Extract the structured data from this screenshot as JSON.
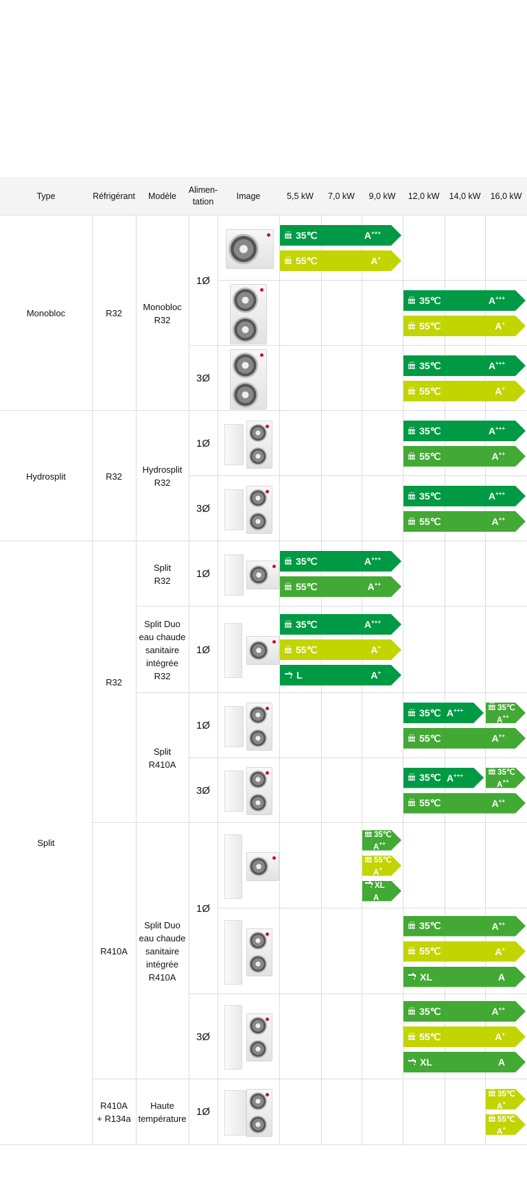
{
  "header": {
    "columns": [
      "Type",
      "Réfrigérant",
      "Modèle",
      "Alimen-\ntation",
      "Image",
      "5,5 kW",
      "7,0 kW",
      "9,0 kW",
      "12,0 kW",
      "14,0 kW",
      "16,0 kW"
    ]
  },
  "colors": {
    "dark_green": "#009a44",
    "mid_green": "#43a935",
    "yellow_green": "#c3d500",
    "header_bg": "#f4f4f4",
    "grid": "#dcdcdc"
  },
  "type_cells": [
    {
      "label": "Monobloc",
      "span": 3
    },
    {
      "label": "Hydrosplit",
      "span": 2
    },
    {
      "label": "Split",
      "span": 8
    }
  ],
  "refrigerant_cells": [
    {
      "label": "R32",
      "span": 3
    },
    {
      "label": "R32",
      "span": 2
    },
    {
      "label": "R32",
      "span": 4
    },
    {
      "label": "R410A",
      "span": 3
    },
    {
      "label": "R410A\n+ R134a",
      "span": 1
    }
  ],
  "model_cells": [
    {
      "label": "Monobloc\nR32",
      "span": 3
    },
    {
      "label": "Hydrosplit\nR32",
      "span": 2
    },
    {
      "label": "Split\nR32",
      "span": 1
    },
    {
      "label": "Split Duo\neau chaude\nsanitaire\nintégrée\nR32",
      "span": 1
    },
    {
      "label": "Split\nR410A",
      "span": 2
    },
    {
      "label": "Split Duo\neau chaude\nsanitaire\nintégrée\nR410A",
      "span": 3
    },
    {
      "label": "Haute\ntempérature",
      "span": 1
    }
  ],
  "power_cells": [
    {
      "label": "1Ø",
      "span": 2
    },
    {
      "label": "3Ø",
      "span": 1
    },
    {
      "label": "1Ø",
      "span": 1
    },
    {
      "label": "3Ø",
      "span": 1
    },
    {
      "label": "1Ø",
      "span": 1
    },
    {
      "label": "1Ø",
      "span": 1
    },
    {
      "label": "1Ø",
      "span": 1
    },
    {
      "label": "3Ø",
      "span": 1
    },
    {
      "label": "1Ø",
      "span": 2
    },
    {
      "label": "3Ø",
      "span": 1
    },
    {
      "label": "1Ø",
      "span": 1
    }
  ],
  "rows": [
    {
      "image": {
        "indoor": "none",
        "outdoor": "single"
      },
      "bars": [
        {
          "icon": "radiator-icon",
          "label": "35℃",
          "rating": "A",
          "sup": "+++",
          "color": "dark_green",
          "from": 0,
          "to": 2
        },
        {
          "icon": "radiator-icon",
          "label": "55℃",
          "rating": "A",
          "sup": "+",
          "color": "yellow_green",
          "from": 0,
          "to": 2
        }
      ]
    },
    {
      "image": {
        "indoor": "none",
        "outdoor": "double"
      },
      "bars": [
        {
          "icon": "radiator-icon",
          "label": "35℃",
          "rating": "A",
          "sup": "+++",
          "color": "dark_green",
          "from": 3,
          "to": 5
        },
        {
          "icon": "radiator-icon",
          "label": "55℃",
          "rating": "A",
          "sup": "+",
          "color": "yellow_green",
          "from": 3,
          "to": 5
        }
      ]
    },
    {
      "image": {
        "indoor": "none",
        "outdoor": "double"
      },
      "bars": [
        {
          "icon": "radiator-icon",
          "label": "35℃",
          "rating": "A",
          "sup": "+++",
          "color": "dark_green",
          "from": 3,
          "to": 5
        },
        {
          "icon": "radiator-icon",
          "label": "55℃",
          "rating": "A",
          "sup": "+",
          "color": "yellow_green",
          "from": 3,
          "to": 5
        }
      ]
    },
    {
      "image": {
        "indoor": "wall",
        "outdoor": "double"
      },
      "bars": [
        {
          "icon": "radiator-icon",
          "label": "35℃",
          "rating": "A",
          "sup": "+++",
          "color": "dark_green",
          "from": 3,
          "to": 5
        },
        {
          "icon": "radiator-icon",
          "label": "55℃",
          "rating": "A",
          "sup": "++",
          "color": "mid_green",
          "from": 3,
          "to": 5
        }
      ]
    },
    {
      "image": {
        "indoor": "wall",
        "outdoor": "double"
      },
      "bars": [
        {
          "icon": "radiator-icon",
          "label": "35℃",
          "rating": "A",
          "sup": "+++",
          "color": "dark_green",
          "from": 3,
          "to": 5
        },
        {
          "icon": "radiator-icon",
          "label": "55℃",
          "rating": "A",
          "sup": "++",
          "color": "mid_green",
          "from": 3,
          "to": 5
        }
      ]
    },
    {
      "image": {
        "indoor": "wall",
        "outdoor": "single"
      },
      "bars": [
        {
          "icon": "radiator-icon",
          "label": "35℃",
          "rating": "A",
          "sup": "+++",
          "color": "dark_green",
          "from": 0,
          "to": 2
        },
        {
          "icon": "radiator-icon",
          "label": "55℃",
          "rating": "A",
          "sup": "++",
          "color": "mid_green",
          "from": 0,
          "to": 2
        }
      ]
    },
    {
      "image": {
        "indoor": "tall",
        "outdoor": "single"
      },
      "bars": [
        {
          "icon": "radiator-icon",
          "label": "35℃",
          "rating": "A",
          "sup": "+++",
          "color": "dark_green",
          "from": 0,
          "to": 2
        },
        {
          "icon": "radiator-icon",
          "label": "55℃",
          "rating": "A",
          "sup": "+",
          "color": "yellow_green",
          "from": 0,
          "to": 2
        },
        {
          "icon": "tap-icon",
          "label": "L",
          "rating": "A",
          "sup": "+",
          "color": "dark_green",
          "from": 0,
          "to": 2
        }
      ]
    },
    {
      "image": {
        "indoor": "wall",
        "outdoor": "double"
      },
      "bars": [
        {
          "icon": "radiator-icon",
          "label": "35℃",
          "rating": "A",
          "sup": "+++",
          "color": "dark_green",
          "from": 3,
          "to": 4,
          "line": 0
        },
        {
          "icon": "radiator-icon",
          "label": "35℃",
          "rating": "A",
          "sup": "++",
          "color": "mid_green",
          "from": 5,
          "to": 5,
          "compact": true,
          "line": 0
        },
        {
          "icon": "radiator-icon",
          "label": "55℃",
          "rating": "A",
          "sup": "++",
          "color": "mid_green",
          "from": 3,
          "to": 5,
          "line": 1
        }
      ]
    },
    {
      "image": {
        "indoor": "wall",
        "outdoor": "double"
      },
      "bars": [
        {
          "icon": "radiator-icon",
          "label": "35℃",
          "rating": "A",
          "sup": "+++",
          "color": "dark_green",
          "from": 3,
          "to": 4,
          "line": 0
        },
        {
          "icon": "radiator-icon",
          "label": "35℃",
          "rating": "A",
          "sup": "++",
          "color": "mid_green",
          "from": 5,
          "to": 5,
          "compact": true,
          "line": 0
        },
        {
          "icon": "radiator-icon",
          "label": "55℃",
          "rating": "A",
          "sup": "++",
          "color": "mid_green",
          "from": 3,
          "to": 5,
          "line": 1
        }
      ]
    },
    {
      "image": {
        "indoor": "tower",
        "outdoor": "single"
      },
      "bars": [
        {
          "icon": "radiator-icon",
          "label": "35℃",
          "rating": "A",
          "sup": "++",
          "color": "mid_green",
          "from": 2,
          "to": 2,
          "compact": true
        },
        {
          "icon": "radiator-icon",
          "label": "55℃",
          "rating": "A",
          "sup": "+",
          "color": "yellow_green",
          "from": 2,
          "to": 2,
          "compact": true
        },
        {
          "icon": "tap-icon",
          "label": "XL",
          "rating": "A",
          "sup": "",
          "color": "mid_green",
          "from": 2,
          "to": 2,
          "compact": true
        }
      ]
    },
    {
      "image": {
        "indoor": "tower",
        "outdoor": "double"
      },
      "bars": [
        {
          "icon": "radiator-icon",
          "label": "35℃",
          "rating": "A",
          "sup": "++",
          "color": "mid_green",
          "from": 3,
          "to": 5
        },
        {
          "icon": "radiator-icon",
          "label": "55℃",
          "rating": "A",
          "sup": "+",
          "color": "yellow_green",
          "from": 3,
          "to": 5
        },
        {
          "icon": "tap-icon",
          "label": "XL",
          "rating": "A",
          "sup": "",
          "color": "mid_green",
          "from": 3,
          "to": 5
        }
      ]
    },
    {
      "image": {
        "indoor": "tower",
        "outdoor": "double"
      },
      "bars": [
        {
          "icon": "radiator-icon",
          "label": "35℃",
          "rating": "A",
          "sup": "++",
          "color": "mid_green",
          "from": 3,
          "to": 5
        },
        {
          "icon": "radiator-icon",
          "label": "55℃",
          "rating": "A",
          "sup": "+",
          "color": "yellow_green",
          "from": 3,
          "to": 5
        },
        {
          "icon": "tap-icon",
          "label": "XL",
          "rating": "A",
          "sup": "",
          "color": "mid_green",
          "from": 3,
          "to": 5
        }
      ]
    },
    {
      "image": {
        "indoor": "cabinet",
        "outdoor": "double"
      },
      "bars": [
        {
          "icon": "radiator-icon",
          "label": "35℃",
          "rating": "A",
          "sup": "+",
          "color": "yellow_green",
          "from": 5,
          "to": 5,
          "compact": true
        },
        {
          "icon": "radiator-icon",
          "label": "55℃",
          "rating": "A",
          "sup": "+",
          "color": "yellow_green",
          "from": 5,
          "to": 5,
          "compact": true
        }
      ]
    }
  ]
}
